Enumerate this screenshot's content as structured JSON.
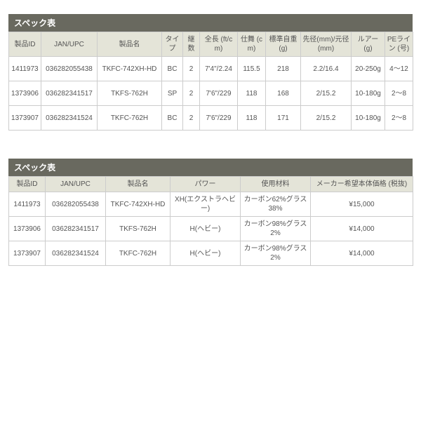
{
  "table1": {
    "title": "スペック表",
    "columns": [
      "製品ID",
      "JAN/UPC",
      "製品名",
      "タイプ",
      "継数",
      "全長 (ft/cm)",
      "仕舞 (cm)",
      "標準自重 (g)",
      "先径(mm)/元径 (mm)",
      "ルアー (g)",
      "PEライン (号)"
    ],
    "rows": [
      [
        "1411973",
        "036282055438",
        "TKFC-742XH-HD",
        "BC",
        "2",
        "7'4\"/2.24",
        "115.5",
        "218",
        "2.2/16.4",
        "20-250g",
        "4～12"
      ],
      [
        "1373906",
        "036282341517",
        "TKFS-762H",
        "SP",
        "2",
        "7'6\"/229",
        "118",
        "168",
        "2/15.2",
        "10-180g",
        "2～8"
      ],
      [
        "1373907",
        "036282341524",
        "TKFC-762H",
        "BC",
        "2",
        "7'6\"/229",
        "118",
        "171",
        "2/15.2",
        "10-180g",
        "2～8"
      ]
    ]
  },
  "table2": {
    "title": "スペック表",
    "columns": [
      "製品ID",
      "JAN/UPC",
      "製品名",
      "パワー",
      "使用材料",
      "メーカー希望本体価格 (税抜)"
    ],
    "rows": [
      [
        "1411973",
        "036282055438",
        "TKFC-742XH-HD",
        "XH(エクストラヘビー)",
        "カーボン62%グラス38%",
        "¥15,000"
      ],
      [
        "1373906",
        "036282341517",
        "TKFS-762H",
        "H(ヘビー)",
        "カーボン98%グラス2%",
        "¥14,000"
      ],
      [
        "1373907",
        "036282341524",
        "TKFC-762H",
        "H(ヘビー)",
        "カーボン98%グラス2%",
        "¥14,000"
      ]
    ]
  },
  "colors": {
    "title_bg": "#69695f",
    "header_bg": "#e4e4d8",
    "border": "#cccccc",
    "text": "#555555"
  }
}
